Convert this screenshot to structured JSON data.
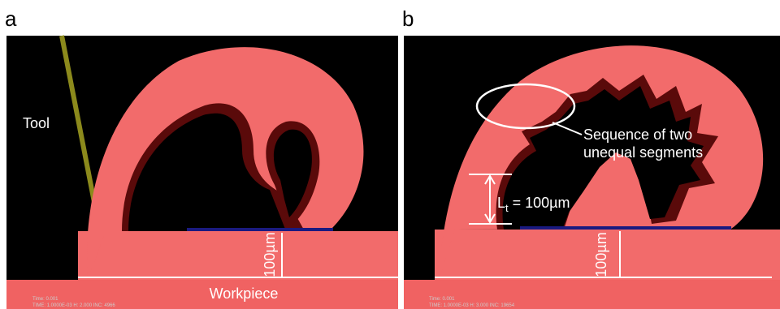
{
  "panels": [
    {
      "label": "a",
      "tool_label": "Tool",
      "workpiece_label": "Workpiece",
      "scale_label": "100µm",
      "footer": [
        "Time: 0.001",
        "TIME: 1.0000E-03  H: 2.000  INC: 4966"
      ]
    },
    {
      "label": "b",
      "callout": [
        "Sequence of two",
        "unequal segments"
      ],
      "thickness": {
        "symbol": "L",
        "subscript": "t",
        "text": " = 100µm"
      },
      "scale_label": "100µm",
      "footer": [
        "Time: 0.001",
        "TIME: 1.0000E-03  H: 3.000  INC: 19654"
      ]
    }
  ]
}
